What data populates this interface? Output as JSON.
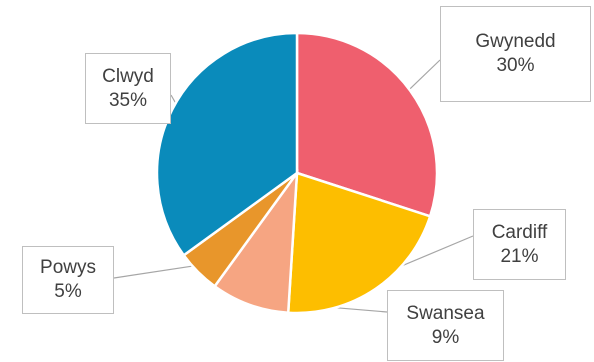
{
  "chart_data": {
    "type": "pie",
    "title": "",
    "legend": "none",
    "slices": [
      {
        "label": "Gwynedd",
        "value": 30,
        "percent_label": "30%",
        "color": "#ef5f6e"
      },
      {
        "label": "Cardiff",
        "value": 21,
        "percent_label": "21%",
        "color": "#fdbe00"
      },
      {
        "label": "Swansea",
        "value": 9,
        "percent_label": "9%",
        "color": "#f6a582"
      },
      {
        "label": "Powys",
        "value": 5,
        "percent_label": "5%",
        "color": "#e8962b"
      },
      {
        "label": "Clwyd",
        "value": 35,
        "percent_label": "35%",
        "color": "#0a8bbb"
      }
    ]
  }
}
